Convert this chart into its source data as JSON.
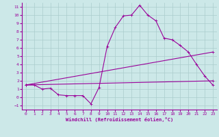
{
  "title": "",
  "xlabel": "Windchill (Refroidissement éolien,°C)",
  "bg_color": "#cce8e8",
  "grid_color": "#aacccc",
  "line_color": "#990099",
  "xlim": [
    -0.5,
    23.5
  ],
  "ylim": [
    -1.5,
    11.5
  ],
  "xticks": [
    0,
    1,
    2,
    3,
    4,
    5,
    6,
    7,
    8,
    9,
    10,
    11,
    12,
    13,
    14,
    15,
    16,
    17,
    18,
    19,
    20,
    21,
    22,
    23
  ],
  "yticks": [
    -1,
    0,
    1,
    2,
    3,
    4,
    5,
    6,
    7,
    8,
    9,
    10,
    11
  ],
  "curve1_x": [
    0,
    1,
    2,
    3,
    4,
    5,
    6,
    7,
    8,
    9,
    10,
    11,
    12,
    13,
    14,
    15,
    16,
    17,
    18,
    19,
    20,
    21,
    22,
    23
  ],
  "curve1_y": [
    1.5,
    1.5,
    1.0,
    1.1,
    0.3,
    0.2,
    0.2,
    0.2,
    -0.8,
    1.2,
    6.2,
    8.5,
    9.9,
    10.0,
    11.2,
    10.0,
    9.3,
    7.2,
    7.0,
    6.3,
    5.5,
    4.0,
    2.6,
    1.5
  ],
  "curve2_x": [
    0,
    23
  ],
  "curve2_y": [
    1.5,
    2.0
  ],
  "curve3_x": [
    0,
    23
  ],
  "curve3_y": [
    1.5,
    5.5
  ],
  "marker_size": 2.5,
  "linewidth": 0.8,
  "tick_fontsize": 4.5,
  "xlabel_fontsize": 5.0
}
